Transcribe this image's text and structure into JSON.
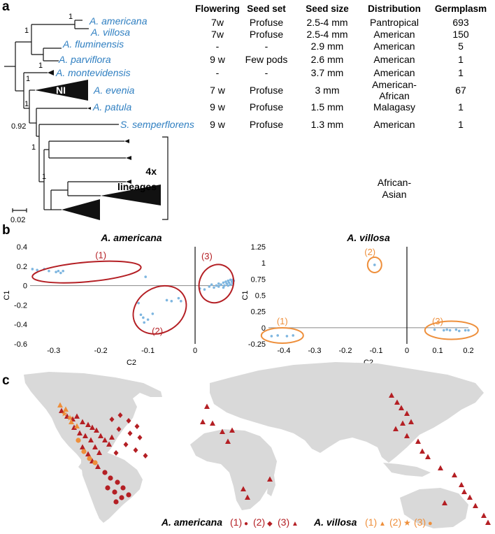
{
  "panel_a": {
    "label": "a",
    "headers": [
      "Flowering",
      "Seed set",
      "Seed size",
      "Distribution",
      "Germplasm"
    ],
    "taxa": [
      "A. americana",
      "A. villosa",
      "A. fluminensis",
      "A. parviflora",
      "A. montevidensis",
      "A. evenia",
      "A. patula",
      "S. semperflorens"
    ],
    "rows": [
      [
        "7w",
        "Profuse",
        "2.5-4 mm",
        "Pantropical",
        "693"
      ],
      [
        "7w",
        "Profuse",
        "2.5-4 mm",
        "American",
        "150"
      ],
      [
        "-",
        "-",
        "2.9 mm",
        "American",
        "5"
      ],
      [
        "9 w",
        "Few pods",
        "2.6 mm",
        "American",
        "1"
      ],
      [
        "-",
        "-",
        "3.7 mm",
        "American",
        "1"
      ],
      [
        "7 w",
        "Profuse",
        "3 mm",
        "",
        "67"
      ],
      [
        "9 w",
        "Profuse",
        "1.5 mm",
        "Malagasy",
        "1"
      ],
      [
        "9 w",
        "Profuse",
        "1.3 mm",
        "American",
        "1"
      ]
    ],
    "evenia_distribution": [
      "American-",
      "African"
    ],
    "support_values": [
      "1",
      "1",
      "1",
      "1",
      "1",
      "0.92",
      "1",
      "1"
    ],
    "ni_label": "NI",
    "lineage_label": [
      "4x",
      "lineages"
    ],
    "african_asian": [
      "African-",
      "Asian"
    ],
    "scale_label": "0.02"
  },
  "panel_b": {
    "label": "b",
    "chart_data": [
      {
        "type": "scatter",
        "title": "A. americana",
        "xlabel": "C2",
        "ylabel": "C1",
        "xlim": [
          -0.35,
          0.08
        ],
        "ylim": [
          -0.6,
          0.4
        ],
        "xticks": [
          "-0.3",
          "-0.2",
          "-0.1",
          "0"
        ],
        "yticks": [
          "0.4",
          "0.2",
          "0",
          "-0.2",
          "-0.4",
          "-0.6"
        ],
        "group_labels": [
          "(1)",
          "(2)",
          "(3)"
        ],
        "points": [
          [
            -0.345,
            0.17
          ],
          [
            -0.335,
            0.16
          ],
          [
            -0.32,
            0.17
          ],
          [
            -0.31,
            0.15
          ],
          [
            -0.295,
            0.14
          ],
          [
            -0.29,
            0.15
          ],
          [
            -0.285,
            0.13
          ],
          [
            -0.28,
            0.15
          ],
          [
            -0.105,
            0.09
          ],
          [
            -0.12,
            -0.18
          ],
          [
            -0.115,
            -0.3
          ],
          [
            -0.11,
            -0.33
          ],
          [
            -0.108,
            -0.38
          ],
          [
            -0.1,
            -0.35
          ],
          [
            -0.09,
            -0.29
          ],
          [
            -0.06,
            -0.15
          ],
          [
            -0.05,
            -0.16
          ],
          [
            -0.035,
            -0.13
          ],
          [
            -0.03,
            -0.16
          ],
          [
            0.01,
            -0.03
          ],
          [
            0.02,
            -0.04
          ],
          [
            0.03,
            -0.01
          ],
          [
            0.035,
            0.01
          ],
          [
            0.04,
            -0.02
          ],
          [
            0.045,
            0.0
          ],
          [
            0.05,
            0.02
          ],
          [
            0.05,
            -0.01
          ],
          [
            0.055,
            0.01
          ],
          [
            0.06,
            0.03
          ],
          [
            0.06,
            -0.02
          ],
          [
            0.062,
            0.0
          ],
          [
            0.065,
            0.04
          ],
          [
            0.067,
            0.02
          ],
          [
            0.07,
            0.05
          ],
          [
            0.07,
            0.0
          ],
          [
            0.072,
            0.03
          ],
          [
            0.075,
            0.06
          ],
          [
            0.075,
            0.01
          ],
          [
            0.078,
            0.04
          ],
          [
            0.08,
            0.02
          ],
          [
            0.08,
            0.06
          ],
          [
            0.082,
            0.05
          ]
        ]
      },
      {
        "type": "scatter",
        "title": "A. villosa",
        "xlabel": "C2",
        "ylabel": "C1",
        "xlim": [
          -0.45,
          0.2
        ],
        "ylim": [
          -0.25,
          1.25
        ],
        "xticks": [
          "-0.4",
          "-0.3",
          "-0.2",
          "-0.1",
          "0",
          "0.1",
          "0.2"
        ],
        "yticks": [
          "1.25",
          "1",
          "0.75",
          "0.5",
          "0.25",
          "0",
          "-0.25"
        ],
        "group_labels": [
          "(1)",
          "(2)",
          "(3)"
        ],
        "points": [
          [
            -0.44,
            -0.13
          ],
          [
            -0.42,
            -0.12
          ],
          [
            -0.39,
            -0.13
          ],
          [
            -0.37,
            -0.12
          ],
          [
            -0.105,
            0.97
          ],
          [
            0.09,
            -0.03
          ],
          [
            0.12,
            -0.04
          ],
          [
            0.13,
            -0.03
          ],
          [
            0.14,
            -0.04
          ],
          [
            0.16,
            -0.03
          ],
          [
            0.17,
            -0.05
          ],
          [
            0.19,
            -0.04
          ],
          [
            0.2,
            -0.04
          ]
        ]
      }
    ]
  },
  "panel_c": {
    "label": "c",
    "legend": {
      "americana_label": "A. americana",
      "americana_groups": [
        "(1)",
        "(2)",
        "(3)"
      ],
      "americana_symbols": [
        "●",
        "◆",
        "▲"
      ],
      "villosa_label": "A. villosa",
      "villosa_groups": [
        "(1)",
        "(2)",
        "(3)"
      ],
      "villosa_symbols": [
        "▲",
        "★",
        "●"
      ]
    }
  },
  "colors": {
    "taxon_blue": "#2f7fc1",
    "point_blue": "#7eb6e0",
    "ellipse_red": "#b41f24",
    "villosa_orange": "#ee8f3b",
    "land_gray": "#d9d9d9"
  }
}
